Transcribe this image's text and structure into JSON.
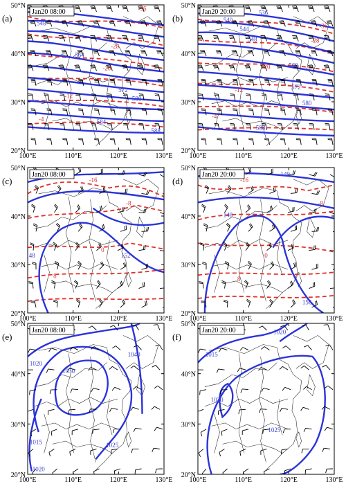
{
  "colors": {
    "solid": "#2b34d8",
    "dashed": "#e0302a",
    "frame": "#000000"
  },
  "axes": {
    "lon_labels": [
      "100°E",
      "110°E",
      "120°E",
      "130°E"
    ],
    "lat_labels": [
      "20°N",
      "30°N",
      "40°N",
      "50°N"
    ]
  },
  "panels": [
    {
      "letter": "(a)",
      "time": "Jan20 08:00",
      "solid_labels": [
        "548",
        "564",
        "572",
        "580",
        "584",
        "588"
      ],
      "dashed_labels": [
        "-36",
        "-28",
        "-20",
        "-12",
        "-4"
      ]
    },
    {
      "letter": "(b)",
      "time": "Jan20 20:00",
      "solid_labels": [
        "536",
        "540",
        "544",
        "548",
        "560",
        "572",
        "580",
        "588"
      ],
      "dashed_labels": [
        "-36",
        "-28",
        "-20",
        "-12",
        "-4"
      ]
    },
    {
      "letter": "(c)",
      "time": "Jan20 08:00",
      "solid_labels": [
        "148",
        "152"
      ],
      "dashed_labels": [
        "-16",
        "-8",
        "0",
        "8"
      ]
    },
    {
      "letter": "(d)",
      "time": "Jan20 20:00",
      "solid_labels": [
        "140",
        "148",
        "156"
      ],
      "dashed_labels": [
        "-16",
        "-8",
        "0",
        "8"
      ]
    },
    {
      "letter": "(e)",
      "time": "Jan20 08:00",
      "solid_labels": [
        "1020",
        "1030",
        "1040",
        "1015",
        "1020",
        "1025"
      ],
      "dashed_labels": []
    },
    {
      "letter": "(f)",
      "time": "Jan20 20:00",
      "solid_labels": [
        "1015",
        "1020",
        "1025",
        "1020"
      ],
      "dashed_labels": []
    }
  ]
}
